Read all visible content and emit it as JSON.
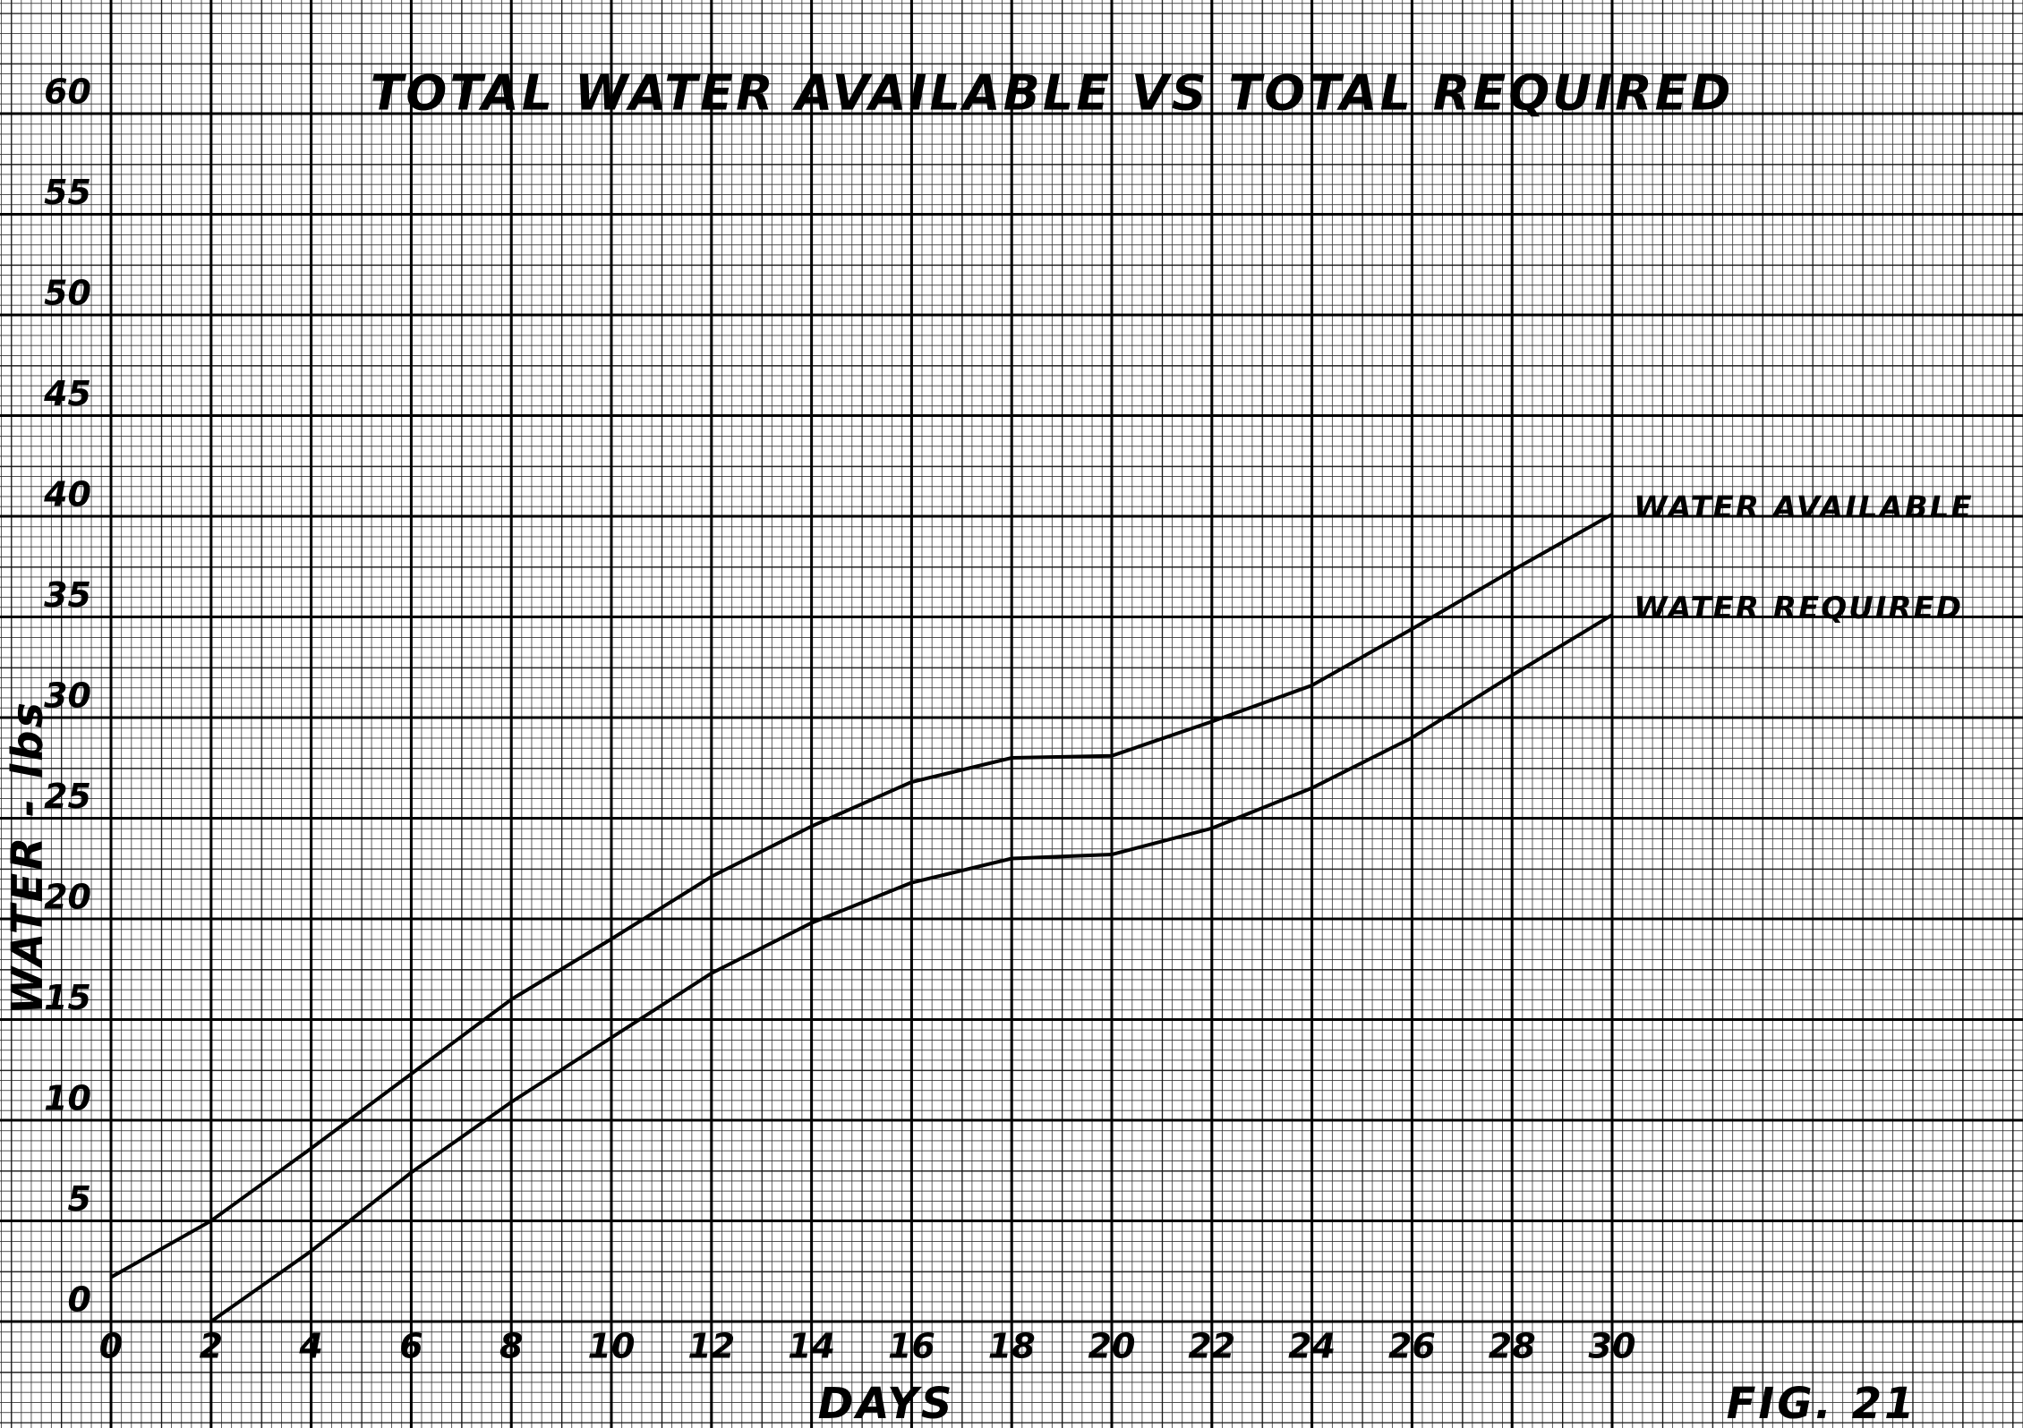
{
  "chart_data": {
    "type": "line",
    "title": "TOTAL WATER AVAILABLE VS TOTAL REQUIRED",
    "xlabel": "DAYS",
    "ylabel": "WATER - lbs",
    "annotation": "FIG. 21",
    "x": [
      0,
      2,
      4,
      6,
      8,
      10,
      12,
      14,
      16,
      18,
      20,
      22,
      24,
      26,
      28,
      30
    ],
    "series": [
      {
        "name": "WATER AVAILABLE",
        "color": "#000000",
        "values": [
          2.2,
          5,
          8.6,
          12.3,
          16,
          19,
          22.1,
          24.6,
          26.8,
          28,
          28.1,
          29.8,
          31.6,
          34.4,
          37.3,
          40.1
        ]
      },
      {
        "name": "WATER REQUIRED",
        "color": "#000000",
        "values": [
          null,
          0,
          3.5,
          7.4,
          10.9,
          14.1,
          17.3,
          19.8,
          21.8,
          23,
          23.2,
          24.5,
          26.5,
          29,
          32.1,
          35.1
        ]
      }
    ],
    "xlim": [
      0,
      30
    ],
    "xticks": [
      0,
      2,
      4,
      6,
      8,
      10,
      12,
      14,
      16,
      18,
      20,
      22,
      24,
      26,
      28,
      30
    ],
    "ylim": [
      0,
      60
    ],
    "yticks": [
      0,
      5,
      10,
      15,
      20,
      25,
      30,
      35,
      40,
      45,
      50,
      55,
      60
    ],
    "grid": true
  }
}
